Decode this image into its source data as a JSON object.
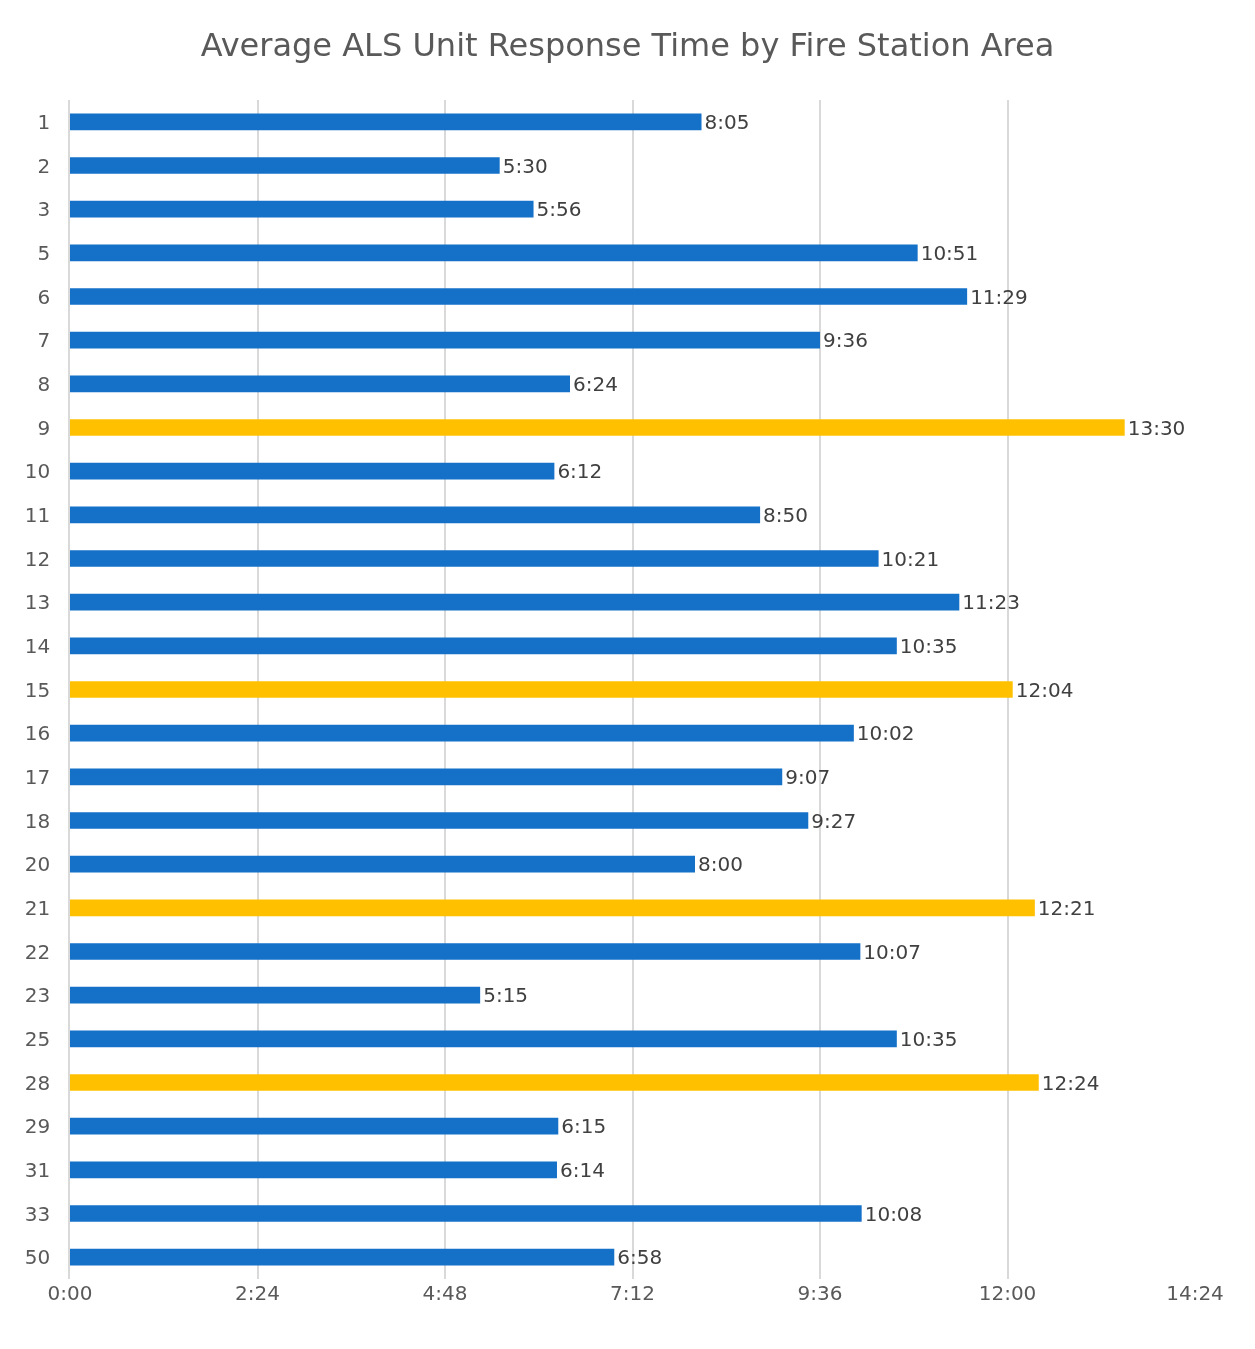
{
  "chart_data": {
    "type": "bar",
    "orientation": "horizontal",
    "title": "Average ALS Unit Response Time by Fire Station Area",
    "categories": [
      "1",
      "2",
      "3",
      "5",
      "6",
      "7",
      "8",
      "9",
      "10",
      "11",
      "12",
      "13",
      "14",
      "15",
      "16",
      "17",
      "18",
      "20",
      "21",
      "22",
      "23",
      "25",
      "28",
      "29",
      "31",
      "33",
      "50"
    ],
    "values": [
      485,
      330,
      356,
      651,
      689,
      576,
      384,
      810,
      372,
      530,
      621,
      683,
      635,
      724,
      602,
      547,
      567,
      480,
      741,
      607,
      315,
      635,
      744,
      375,
      374,
      608,
      418
    ],
    "value_labels": [
      "8:05",
      "5:30",
      "5:56",
      "10:51",
      "11:29",
      "9:36",
      "6:24",
      "13:30",
      "6:12",
      "8:50",
      "10:21",
      "11:23",
      "10:35",
      "12:04",
      "10:02",
      "9:07",
      "9:27",
      "8:00",
      "12:21",
      "10:07",
      "5:15",
      "10:35",
      "12:24",
      "6:15",
      "6:14",
      "10:08",
      "6:58"
    ],
    "colors": [
      "#1570c8",
      "#1570c8",
      "#1570c8",
      "#1570c8",
      "#1570c8",
      "#1570c8",
      "#1570c8",
      "#ffc000",
      "#1570c8",
      "#1570c8",
      "#1570c8",
      "#1570c8",
      "#1570c8",
      "#ffc000",
      "#1570c8",
      "#1570c8",
      "#1570c8",
      "#1570c8",
      "#ffc000",
      "#1570c8",
      "#1570c8",
      "#1570c8",
      "#ffc000",
      "#1570c8",
      "#1570c8",
      "#1570c8",
      "#1570c8"
    ],
    "xlim": [
      0,
      864
    ],
    "xticks": [
      {
        "value": 0,
        "label": "0:00"
      },
      {
        "value": 144,
        "label": "2:24"
      },
      {
        "value": 288,
        "label": "4:48"
      },
      {
        "value": 432,
        "label": "7:12"
      },
      {
        "value": 576,
        "label": "9:36"
      },
      {
        "value": 720,
        "label": "12:00"
      },
      {
        "value": 864,
        "label": "14:24"
      }
    ],
    "grid": "x"
  }
}
